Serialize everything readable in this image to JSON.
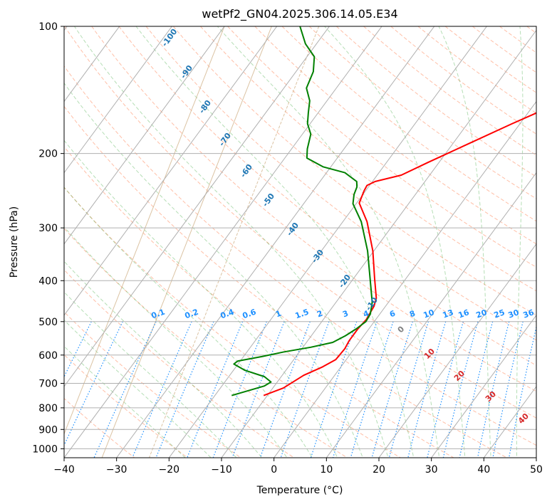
{
  "chart_data": {
    "type": "line",
    "subtype": "skew-t log-p diagram",
    "title": "wetPf2_GN04.2025.306.14.05.E34",
    "xlabel": "Temperature (°C)",
    "ylabel": "Pressure (hPa)",
    "xlim": [
      -40,
      50
    ],
    "ylim": [
      1050,
      100
    ],
    "y_scale": "log",
    "grid": true,
    "x_ticks": [
      -40,
      -30,
      -20,
      -10,
      0,
      10,
      20,
      30,
      40,
      50
    ],
    "y_ticks": [
      100,
      200,
      300,
      400,
      500,
      600,
      700,
      800,
      900,
      1000
    ],
    "series": [
      {
        "name": "",
        "color": "#ff0000",
        "x_unit": "°C at pressure",
        "points": [
          [
            -10.7,
            748
          ],
          [
            -8.0,
            718
          ],
          [
            -5.9,
            670
          ],
          [
            -3.5,
            640
          ],
          [
            -2.0,
            615
          ],
          [
            -1.8,
            580
          ],
          [
            -2.1,
            555
          ],
          [
            -2.1,
            520
          ],
          [
            -1.8,
            495
          ],
          [
            -2.2,
            460
          ],
          [
            -2.9,
            440
          ],
          [
            -6.0,
            395
          ],
          [
            -10.2,
            340
          ],
          [
            -15.4,
            290
          ],
          [
            -19.5,
            262
          ],
          [
            -20.3,
            245
          ],
          [
            -20.5,
            238
          ],
          [
            -19.5,
            233
          ],
          [
            -15.4,
            225
          ],
          [
            -12.1,
            210
          ],
          [
            -7.1,
            190
          ],
          [
            -1.5,
            170
          ],
          [
            5.2,
            150
          ],
          [
            11.4,
            133
          ],
          [
            15.6,
            122
          ],
          [
            19.7,
            112
          ],
          [
            22.2,
            104
          ],
          [
            23.6,
            100
          ]
        ]
      },
      {
        "name": "",
        "color": "#008000",
        "x_unit": "°C at pressure",
        "points": [
          [
            -16.8,
            748
          ],
          [
            -14.5,
            730
          ],
          [
            -11.9,
            710
          ],
          [
            -11.2,
            695
          ],
          [
            -13.2,
            675
          ],
          [
            -17.8,
            652
          ],
          [
            -20.8,
            630
          ],
          [
            -20.5,
            620
          ],
          [
            -16.5,
            605
          ],
          [
            -13.0,
            590
          ],
          [
            -8.5,
            575
          ],
          [
            -5.0,
            560
          ],
          [
            -3.5,
            540
          ],
          [
            -2.4,
            520
          ],
          [
            -1.6,
            500
          ],
          [
            -1.8,
            480
          ],
          [
            -3.1,
            450
          ],
          [
            -6.5,
            400
          ],
          [
            -11.2,
            340
          ],
          [
            -16.5,
            290
          ],
          [
            -20.6,
            263
          ],
          [
            -21.7,
            250
          ],
          [
            -22.2,
            240
          ],
          [
            -23.0,
            233
          ],
          [
            -26.5,
            222
          ],
          [
            -31.5,
            215
          ],
          [
            -35.8,
            205
          ],
          [
            -37.0,
            195
          ],
          [
            -38.4,
            180
          ],
          [
            -40.5,
            170
          ],
          [
            -41.9,
            160
          ],
          [
            -43.3,
            150
          ],
          [
            -45.7,
            140
          ],
          [
            -46.7,
            128
          ],
          [
            -48.6,
            118
          ],
          [
            -52.1,
            110
          ],
          [
            -55.6,
            100
          ]
        ]
      }
    ],
    "isotherm_labels": [
      "-100",
      "-90",
      "-80",
      "-70",
      "-60",
      "-50",
      "-40",
      "-30",
      "-20",
      "-10"
    ],
    "mixing_ratio_labels": [
      "0.1",
      "0.2",
      "0.4",
      "0.6",
      "1",
      "1.5",
      "2",
      "3",
      "4",
      "6",
      "8",
      "10",
      "13",
      "16",
      "20",
      "25",
      "30",
      "36"
    ],
    "moist_adiabat_labels": [
      "0",
      "10",
      "20",
      "30",
      "40"
    ],
    "colors": {
      "temperature": "#ff0000",
      "dewpoint": "#008000",
      "isotherm": "#b0b0b0",
      "isotherm_label": "#1f77b4",
      "dry_adiabat": "#ff7f50",
      "moist_adiabat": "#2ca02c",
      "mixing_ratio": "#1e90ff",
      "moist_label": "#d62728",
      "lcl_curve": "#d2b48c"
    }
  }
}
